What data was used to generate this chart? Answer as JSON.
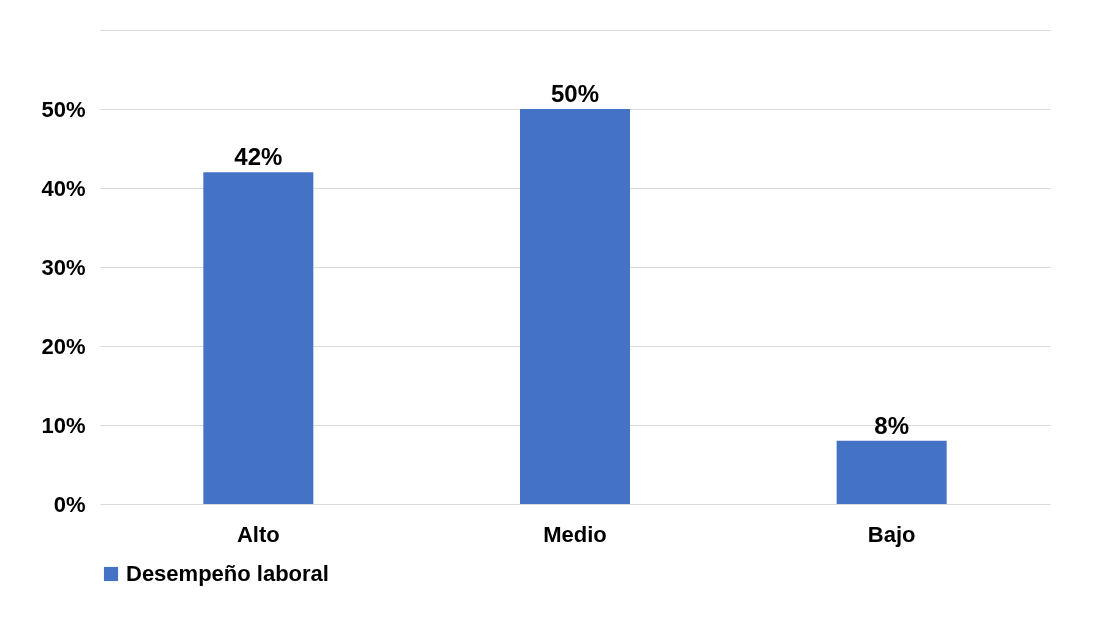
{
  "chart_data": {
    "type": "bar",
    "categories": [
      "Alto",
      "Medio",
      "Bajo"
    ],
    "series": [
      {
        "name": "Desempeño laboral",
        "color": "#4472c4",
        "values": [
          42,
          50,
          8
        ]
      }
    ],
    "value_labels": [
      "42%",
      "50%",
      "8%"
    ],
    "ylim": [
      0,
      60
    ],
    "yticks": [
      {
        "value": 0,
        "label": "0%"
      },
      {
        "value": 10,
        "label": "10%"
      },
      {
        "value": 20,
        "label": "20%"
      },
      {
        "value": 30,
        "label": "30%"
      },
      {
        "value": 40,
        "label": "40%"
      },
      {
        "value": 50,
        "label": "50%"
      },
      {
        "value": 60,
        "label": null
      }
    ],
    "grid": "y",
    "legend": "bottom"
  }
}
